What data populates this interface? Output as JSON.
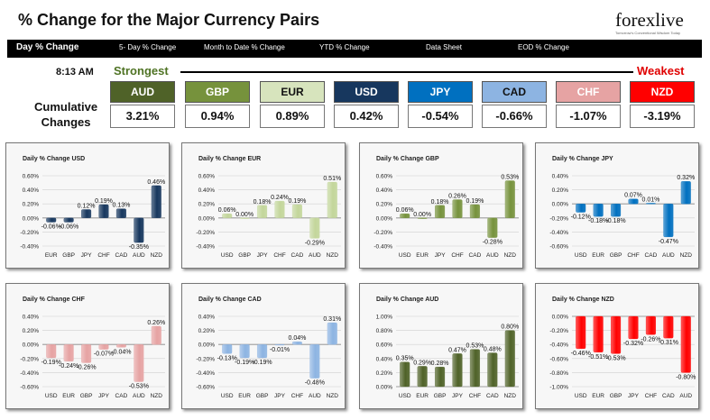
{
  "header": {
    "title": "% Change for the Major Currency Pairs",
    "logo_text": "forexlive",
    "logo_tagline": "Tomorrow's Conventional Wisdom Today"
  },
  "nav": {
    "items": [
      "Day % Change",
      "5- Day % Change",
      "Month to Date % Change",
      "YTD % Change",
      "Data Sheet",
      "EOD % Change"
    ]
  },
  "summary": {
    "time": "8:13 AM",
    "strongest_label": "Strongest",
    "weakest_label": "Weakest",
    "cumulative_label_line1": "Cumulative",
    "cumulative_label_line2": "Changes",
    "currencies": [
      {
        "code": "AUD",
        "value": "3.21%",
        "bg": "#4f6228",
        "fg": "#ffffff"
      },
      {
        "code": "GBP",
        "value": "0.94%",
        "bg": "#76923c",
        "fg": "#ffffff"
      },
      {
        "code": "EUR",
        "value": "0.89%",
        "bg": "#d7e4bd",
        "fg": "#111111"
      },
      {
        "code": "USD",
        "value": "0.42%",
        "bg": "#17375e",
        "fg": "#ffffff"
      },
      {
        "code": "JPY",
        "value": "-0.54%",
        "bg": "#0070c0",
        "fg": "#ffffff"
      },
      {
        "code": "CAD",
        "value": "-0.66%",
        "bg": "#8db4e2",
        "fg": "#111111"
      },
      {
        "code": "CHF",
        "value": "-1.07%",
        "bg": "#e6a3a3",
        "fg": "#ffffff"
      },
      {
        "code": "NZD",
        "value": "-3.19%",
        "bg": "#ff0000",
        "fg": "#ffffff"
      }
    ]
  },
  "chart_data": [
    {
      "type": "bar",
      "title": "Daily % Change USD",
      "categories": [
        "EUR",
        "GBP",
        "JPY",
        "CHF",
        "CAD",
        "AUD",
        "NZD"
      ],
      "values": [
        -0.06,
        -0.06,
        0.12,
        0.19,
        0.13,
        -0.35,
        0.46
      ],
      "labels": [
        "-0.06%",
        "-0.06%",
        "0.12%",
        "0.19%",
        "0.13%",
        "-0.35%",
        "0.46%"
      ],
      "ylim": [
        -0.4,
        0.6
      ],
      "yticks": [
        -0.4,
        -0.2,
        0,
        0.2,
        0.4,
        0.6
      ],
      "ytick_labels": [
        "-0.40%",
        "-0.20%",
        "0.00%",
        "0.20%",
        "0.40%",
        "0.60%"
      ],
      "color": "#17375e"
    },
    {
      "type": "bar",
      "title": "Daily % Change EUR",
      "categories": [
        "USD",
        "GBP",
        "JPY",
        "CHF",
        "CAD",
        "AUD",
        "NZD"
      ],
      "values": [
        0.06,
        0.0,
        0.18,
        0.24,
        0.19,
        -0.29,
        0.51
      ],
      "labels": [
        "0.06%",
        "0.00%",
        "0.18%",
        "0.24%",
        "0.19%",
        "-0.29%",
        "0.51%"
      ],
      "ylim": [
        -0.4,
        0.6
      ],
      "yticks": [
        -0.4,
        -0.2,
        0,
        0.2,
        0.4,
        0.6
      ],
      "ytick_labels": [
        "-0.40%",
        "-0.20%",
        "0.00%",
        "0.20%",
        "0.40%",
        "0.60%"
      ],
      "color": "#c3d69b"
    },
    {
      "type": "bar",
      "title": "Daily % Change GBP",
      "categories": [
        "USD",
        "EUR",
        "JPY",
        "CHF",
        "CAD",
        "AUD",
        "NZD"
      ],
      "values": [
        0.06,
        0.0,
        0.18,
        0.26,
        0.19,
        -0.28,
        0.53
      ],
      "labels": [
        "0.06%",
        "0.00%",
        "0.18%",
        "0.26%",
        "0.19%",
        "-0.28%",
        "0.53%"
      ],
      "ylim": [
        -0.4,
        0.6
      ],
      "yticks": [
        -0.4,
        -0.2,
        0,
        0.2,
        0.4,
        0.6
      ],
      "ytick_labels": [
        "-0.40%",
        "-0.20%",
        "0.00%",
        "0.20%",
        "0.40%",
        "0.60%"
      ],
      "color": "#76923c"
    },
    {
      "type": "bar",
      "title": "Daily % Change JPY",
      "categories": [
        "USD",
        "EUR",
        "GBP",
        "CHF",
        "CAD",
        "AUD",
        "NZD"
      ],
      "values": [
        -0.12,
        -0.18,
        -0.18,
        0.07,
        0.01,
        -0.47,
        0.32
      ],
      "labels": [
        "-0.12%",
        "-0.18%",
        "-0.18%",
        "0.07%",
        "0.01%",
        "-0.47%",
        "0.32%"
      ],
      "ylim": [
        -0.6,
        0.4
      ],
      "yticks": [
        -0.6,
        -0.4,
        -0.2,
        0,
        0.2,
        0.4
      ],
      "ytick_labels": [
        "-0.60%",
        "-0.40%",
        "-0.20%",
        "0.00%",
        "0.20%",
        "0.40%"
      ],
      "color": "#0070c0"
    },
    {
      "type": "bar",
      "title": "Daily % Change CHF",
      "categories": [
        "USD",
        "EUR",
        "GBP",
        "JPY",
        "CAD",
        "AUD",
        "NZD"
      ],
      "values": [
        -0.19,
        -0.24,
        -0.26,
        -0.07,
        -0.04,
        -0.53,
        0.26
      ],
      "labels": [
        "-0.19%",
        "-0.24%",
        "-0.26%",
        "-0.07%",
        "-0.04%",
        "-0.53%",
        "0.26%"
      ],
      "ylim": [
        -0.6,
        0.4
      ],
      "yticks": [
        -0.6,
        -0.4,
        -0.2,
        0,
        0.2,
        0.4
      ],
      "ytick_labels": [
        "-0.60%",
        "-0.40%",
        "-0.20%",
        "0.00%",
        "0.20%",
        "0.40%"
      ],
      "color": "#e6a3a3"
    },
    {
      "type": "bar",
      "title": "Daily % Change CAD",
      "categories": [
        "USD",
        "EUR",
        "GBP",
        "JPY",
        "CHF",
        "AUD",
        "NZD"
      ],
      "values": [
        -0.13,
        -0.19,
        -0.19,
        -0.01,
        0.04,
        -0.48,
        0.31
      ],
      "labels": [
        "-0.13%",
        "-0.19%",
        "-0.19%",
        "-0.01%",
        "0.04%",
        "-0.48%",
        "0.31%"
      ],
      "ylim": [
        -0.6,
        0.4
      ],
      "yticks": [
        -0.6,
        -0.4,
        -0.2,
        0,
        0.2,
        0.4
      ],
      "ytick_labels": [
        "-0.60%",
        "-0.40%",
        "-0.20%",
        "0.00%",
        "0.20%",
        "0.40%"
      ],
      "color": "#8db4e2"
    },
    {
      "type": "bar",
      "title": "Daily % Change AUD",
      "categories": [
        "USD",
        "EUR",
        "GBP",
        "JPY",
        "CHF",
        "CAD",
        "NZD"
      ],
      "values": [
        0.35,
        0.29,
        0.28,
        0.47,
        0.53,
        0.48,
        0.8
      ],
      "labels": [
        "0.35%",
        "0.29%",
        "0.28%",
        "0.47%",
        "0.53%",
        "0.48%",
        "0.80%"
      ],
      "ylim": [
        0,
        1
      ],
      "yticks": [
        0,
        0.2,
        0.4,
        0.6,
        0.8,
        1
      ],
      "ytick_labels": [
        "0.00%",
        "0.20%",
        "0.40%",
        "0.60%",
        "0.80%",
        "1.00%"
      ],
      "color": "#4f6228"
    },
    {
      "type": "bar",
      "title": "Daily % Change NZD",
      "categories": [
        "USD",
        "EUR",
        "GBP",
        "JPY",
        "CHF",
        "CAD",
        "AUD"
      ],
      "values": [
        -0.46,
        -0.51,
        -0.53,
        -0.32,
        -0.26,
        -0.31,
        -0.8
      ],
      "labels": [
        "-0.46%",
        "-0.51%",
        "-0.53%",
        "-0.32%",
        "-0.26%",
        "-0.31%",
        "-0.80%"
      ],
      "ylim": [
        -1,
        0
      ],
      "yticks": [
        -1,
        -0.8,
        -0.6,
        -0.4,
        -0.2,
        0
      ],
      "ytick_labels": [
        "-1.00%",
        "-0.80%",
        "-0.60%",
        "-0.40%",
        "-0.20%",
        "0.00%"
      ],
      "color": "#ff0000"
    }
  ]
}
